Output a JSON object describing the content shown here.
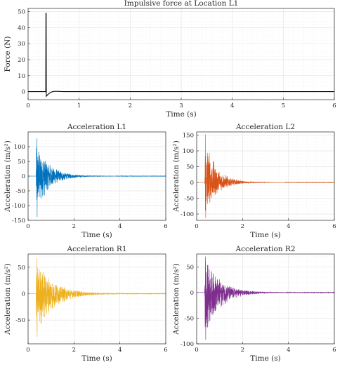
{
  "chart_data": [
    {
      "type": "line",
      "title": "Impulsive force at Location L1",
      "xlabel": "Time (s)",
      "ylabel": "Force (N)",
      "xlim": [
        0,
        6
      ],
      "ylim": [
        -5,
        52
      ],
      "xticks": [
        0,
        1,
        2,
        3,
        4,
        5,
        6
      ],
      "yticks": [
        0,
        10,
        20,
        30,
        40,
        50
      ],
      "grid": true,
      "color": "#000000",
      "signal": {
        "kind": "impulse",
        "t0": 0.35,
        "peak": 49,
        "undershoot": -3
      }
    },
    {
      "type": "line",
      "title": "Acceleration L1",
      "xlabel": "Time (s)",
      "ylabel": "Acceleration (m/s²)",
      "xlim": [
        0,
        6
      ],
      "ylim": [
        -150,
        150
      ],
      "xticks": [
        0,
        2,
        4,
        6
      ],
      "yticks": [
        -150,
        -100,
        -50,
        0,
        50,
        100
      ],
      "grid": true,
      "color": "#0072BD",
      "signal": {
        "kind": "decay",
        "t0": 0.35,
        "amp_pos": 128,
        "amp_neg": -138,
        "tau": 0.55
      }
    },
    {
      "type": "line",
      "title": "Acceleration L2",
      "xlabel": "Time (s)",
      "ylabel": "Acceleration (m/s²)",
      "xlim": [
        0,
        6
      ],
      "ylim": [
        -120,
        160
      ],
      "xticks": [
        0,
        2,
        4,
        6
      ],
      "yticks": [
        -100,
        -50,
        0,
        50,
        100,
        150
      ],
      "grid": true,
      "color": "#D95319",
      "signal": {
        "kind": "decay",
        "t0": 0.35,
        "amp_pos": 152,
        "amp_neg": -112,
        "tau": 0.5
      }
    },
    {
      "type": "line",
      "title": "Acceleration R1",
      "xlabel": "Time (s)",
      "ylabel": "Acceleration (m/s²)",
      "xlim": [
        0,
        6
      ],
      "ylim": [
        -95,
        75
      ],
      "xticks": [
        0,
        2,
        4,
        6
      ],
      "yticks": [
        -50,
        0,
        50
      ],
      "grid": true,
      "color": "#EDB120",
      "signal": {
        "kind": "decay",
        "t0": 0.35,
        "amp_pos": 67,
        "amp_neg": -82,
        "tau": 0.75
      }
    },
    {
      "type": "line",
      "title": "Acceleration R2",
      "xlabel": "Time (s)",
      "ylabel": "Acceleration (m/s²)",
      "xlim": [
        0,
        6
      ],
      "ylim": [
        -100,
        75
      ],
      "xticks": [
        0,
        2,
        4,
        6
      ],
      "yticks": [
        -100,
        -50,
        0,
        50
      ],
      "grid": true,
      "color": "#7E2F8E",
      "signal": {
        "kind": "decay",
        "t0": 0.35,
        "amp_pos": 70,
        "amp_neg": -92,
        "tau": 0.65
      }
    }
  ]
}
